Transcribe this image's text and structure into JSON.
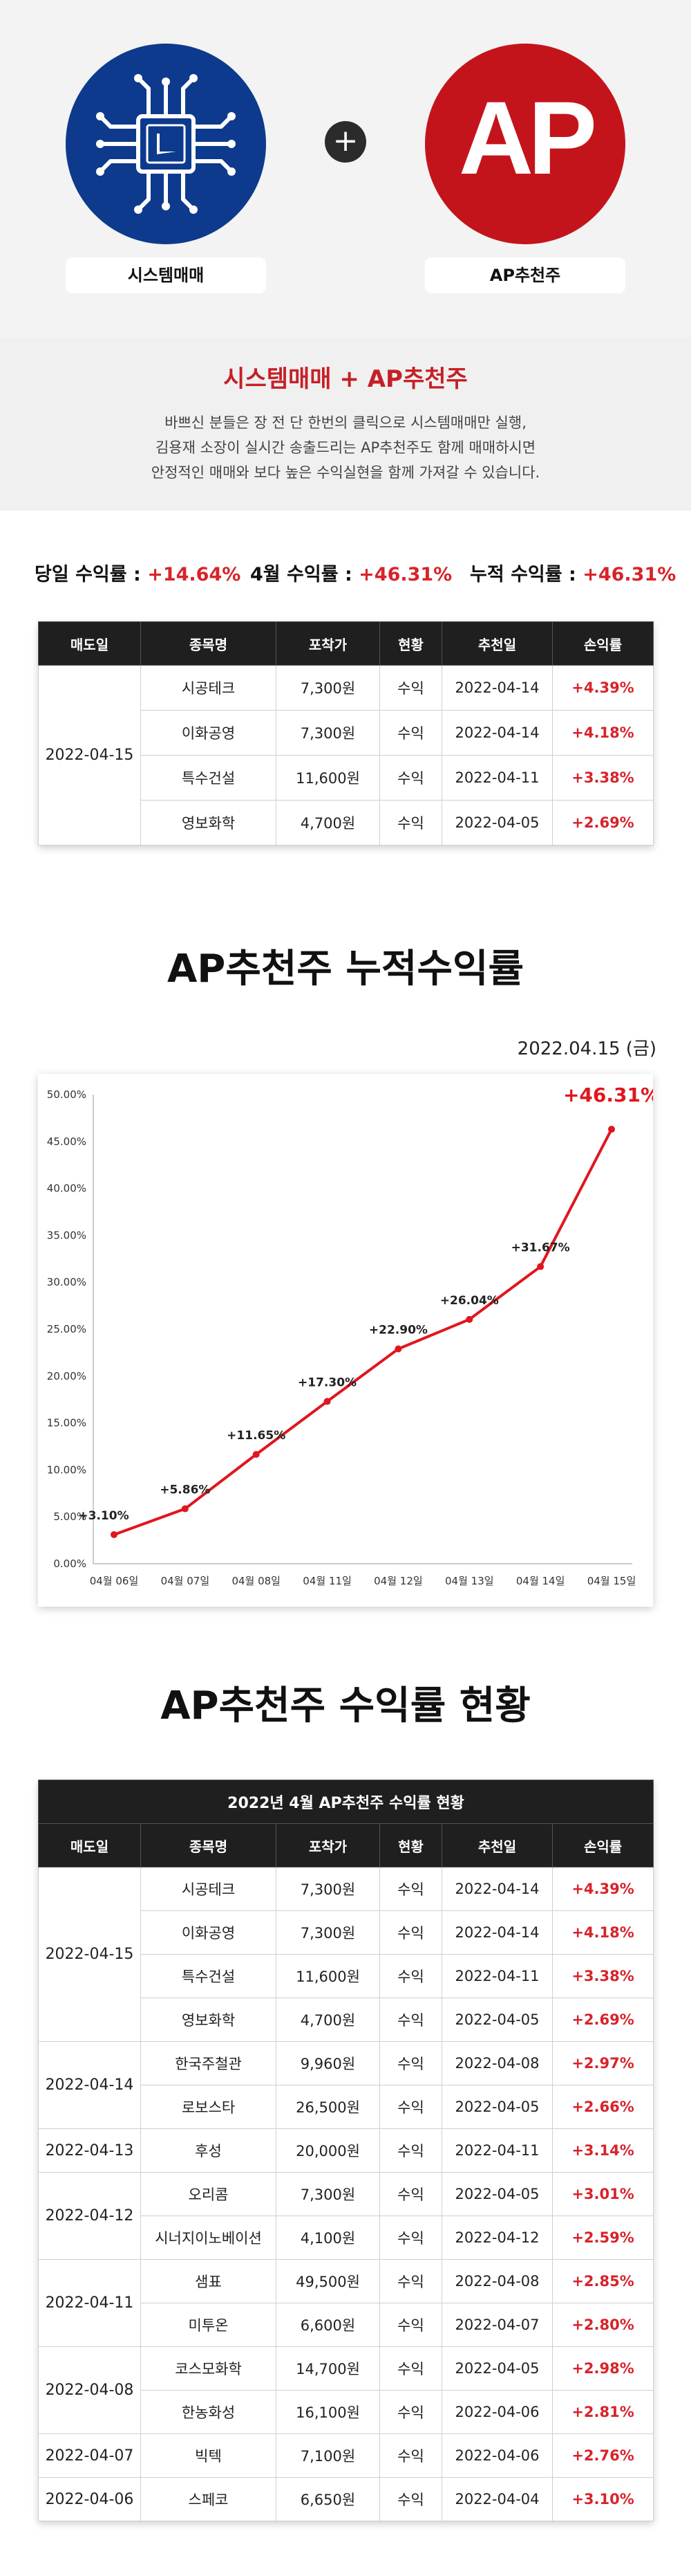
{
  "hero": {
    "plus": "+",
    "left_label": "시스템매매",
    "right_label": "AP추천주",
    "ap_logo_text": "AP"
  },
  "intro": {
    "title": "시스템매매 + AP추천주",
    "lines": [
      "바쁘신 분들은 장 전 단 한번의 클릭으로 시스템매매만 실행,",
      "김용재 소장이 실시간 송출드리는 AP추천주도 함께 매매하시면",
      "안정적인 매매와 보다 높은 수익실현을 함께 가져갈 수 있습니다."
    ]
  },
  "summary": {
    "daily_label": "당일 수익률 : ",
    "daily_value": "+14.64%",
    "month_label": "4월 수익률 : ",
    "month_value": "+46.31%",
    "cum_label": "누적 수익률 : ",
    "cum_value": "+46.31%"
  },
  "columns": [
    "매도일",
    "종목명",
    "포착가",
    "현황",
    "추천일",
    "손익률"
  ],
  "today_table": {
    "sell_date": "2022-04-15",
    "rows": [
      {
        "name": "시공테크",
        "price": "7,300원",
        "status": "수익",
        "rec": "2022-04-14",
        "rate": "+4.39%"
      },
      {
        "name": "이화공영",
        "price": "7,300원",
        "status": "수익",
        "rec": "2022-04-14",
        "rate": "+4.18%"
      },
      {
        "name": "특수건설",
        "price": "11,600원",
        "status": "수익",
        "rec": "2022-04-11",
        "rate": "+3.38%"
      },
      {
        "name": "영보화학",
        "price": "4,700원",
        "status": "수익",
        "rec": "2022-04-05",
        "rate": "+2.69%"
      }
    ]
  },
  "chart_section": {
    "title": "AP추천주 누적수익률",
    "date": "2022.04.15 (금)"
  },
  "chart_data": {
    "type": "line",
    "categories": [
      "04월 06일",
      "04월 07일",
      "04월 08일",
      "04월 11일",
      "04월 12일",
      "04월 13일",
      "04월 14일",
      "04월 15일"
    ],
    "values": [
      3.1,
      5.86,
      11.65,
      17.3,
      22.9,
      26.04,
      31.67,
      46.31
    ],
    "labels": [
      "+3.10%",
      "+5.86%",
      "+11.65%",
      "+17.30%",
      "+22.90%",
      "+26.04%",
      "+31.67%",
      "+46.31%"
    ],
    "yticks": [
      "0.00%",
      "5.00%",
      "10.00%",
      "15.00%",
      "20.00%",
      "25.00%",
      "30.00%",
      "35.00%",
      "40.00%",
      "45.00%",
      "50.00%"
    ],
    "ylim": [
      0,
      50
    ],
    "grid": false,
    "colors": {
      "line": "#e0161e",
      "last_label": "#e0161e"
    }
  },
  "status_section": {
    "title": "AP추천주 수익률 현황",
    "table_caption": "2022년 4월 AP추천주 수익률 현황"
  },
  "status_table": [
    {
      "sell_date": "2022-04-15",
      "rows": [
        {
          "name": "시공테크",
          "price": "7,300원",
          "status": "수익",
          "rec": "2022-04-14",
          "rate": "+4.39%"
        },
        {
          "name": "이화공영",
          "price": "7,300원",
          "status": "수익",
          "rec": "2022-04-14",
          "rate": "+4.18%"
        },
        {
          "name": "특수건설",
          "price": "11,600원",
          "status": "수익",
          "rec": "2022-04-11",
          "rate": "+3.38%"
        },
        {
          "name": "영보화학",
          "price": "4,700원",
          "status": "수익",
          "rec": "2022-04-05",
          "rate": "+2.69%"
        }
      ]
    },
    {
      "sell_date": "2022-04-14",
      "rows": [
        {
          "name": "한국주철관",
          "price": "9,960원",
          "status": "수익",
          "rec": "2022-04-08",
          "rate": "+2.97%"
        },
        {
          "name": "로보스타",
          "price": "26,500원",
          "status": "수익",
          "rec": "2022-04-05",
          "rate": "+2.66%"
        }
      ]
    },
    {
      "sell_date": "2022-04-13",
      "rows": [
        {
          "name": "후성",
          "price": "20,000원",
          "status": "수익",
          "rec": "2022-04-11",
          "rate": "+3.14%"
        }
      ]
    },
    {
      "sell_date": "2022-04-12",
      "rows": [
        {
          "name": "오리콤",
          "price": "7,300원",
          "status": "수익",
          "rec": "2022-04-05",
          "rate": "+3.01%"
        },
        {
          "name": "시너지이노베이션",
          "price": "4,100원",
          "status": "수익",
          "rec": "2022-04-12",
          "rate": "+2.59%"
        }
      ]
    },
    {
      "sell_date": "2022-04-11",
      "rows": [
        {
          "name": "샘표",
          "price": "49,500원",
          "status": "수익",
          "rec": "2022-04-08",
          "rate": "+2.85%"
        },
        {
          "name": "미투온",
          "price": "6,600원",
          "status": "수익",
          "rec": "2022-04-07",
          "rate": "+2.80%"
        }
      ]
    },
    {
      "sell_date": "2022-04-08",
      "rows": [
        {
          "name": "코스모화학",
          "price": "14,700원",
          "status": "수익",
          "rec": "2022-04-05",
          "rate": "+2.98%"
        },
        {
          "name": "한농화성",
          "price": "16,100원",
          "status": "수익",
          "rec": "2022-04-06",
          "rate": "+2.81%"
        }
      ]
    },
    {
      "sell_date": "2022-04-07",
      "rows": [
        {
          "name": "빅텍",
          "price": "7,100원",
          "status": "수익",
          "rec": "2022-04-06",
          "rate": "+2.76%"
        }
      ]
    },
    {
      "sell_date": "2022-04-06",
      "rows": [
        {
          "name": "스페코",
          "price": "6,650원",
          "status": "수익",
          "rec": "2022-04-04",
          "rate": "+3.10%"
        }
      ]
    }
  ]
}
